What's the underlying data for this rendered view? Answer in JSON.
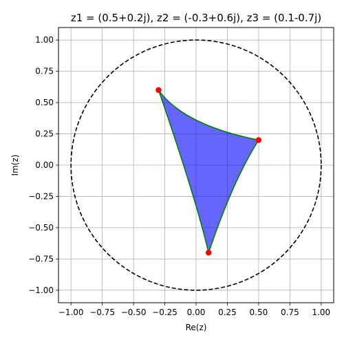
{
  "chart_data": {
    "type": "scatter",
    "title": "z1 = (0.5+0.2j), z2 = (-0.3+0.6j), z3 = (0.1-0.7j)",
    "xlabel": "Re(z)",
    "ylabel": "Im(z)",
    "xlim": [
      -1.1,
      1.1
    ],
    "ylim": [
      -1.1,
      1.1
    ],
    "grid": true,
    "x_ticks": [
      -1.0,
      -0.75,
      -0.5,
      -0.25,
      0.0,
      0.25,
      0.5,
      0.75,
      1.0
    ],
    "x_tick_labels": [
      "−1.00",
      "−0.75",
      "−0.50",
      "−0.25",
      "0.00",
      "0.25",
      "0.50",
      "0.75",
      "1.00"
    ],
    "y_ticks": [
      1.0,
      0.75,
      0.5,
      0.25,
      0.0,
      -0.25,
      -0.5,
      -0.75,
      -1.0
    ],
    "y_tick_labels": [
      "1.00",
      "0.75",
      "0.50",
      "0.25",
      "0.00",
      "−0.25",
      "−0.50",
      "−0.75",
      "−1.00"
    ],
    "unit_circle": {
      "center": [
        0,
        0
      ],
      "radius": 1,
      "style": "dashed",
      "color": "#000000"
    },
    "points": [
      {
        "label": "z1",
        "x": 0.5,
        "y": 0.2
      },
      {
        "label": "z2",
        "x": -0.3,
        "y": 0.6
      },
      {
        "label": "z3",
        "x": 0.1,
        "y": -0.7
      }
    ],
    "point_color": "#ff0000",
    "triangle": {
      "fill": "#0000ff",
      "fill_opacity": 0.6,
      "edge_color": "#008000",
      "edges": [
        {
          "from": "z1",
          "to": "z2",
          "through": [
            0.0,
            0.36
          ]
        },
        {
          "from": "z2",
          "to": "z3",
          "through": [
            -0.05,
            -0.16
          ]
        },
        {
          "from": "z3",
          "to": "z1",
          "through": [
            0.3,
            -0.18
          ]
        }
      ]
    }
  }
}
